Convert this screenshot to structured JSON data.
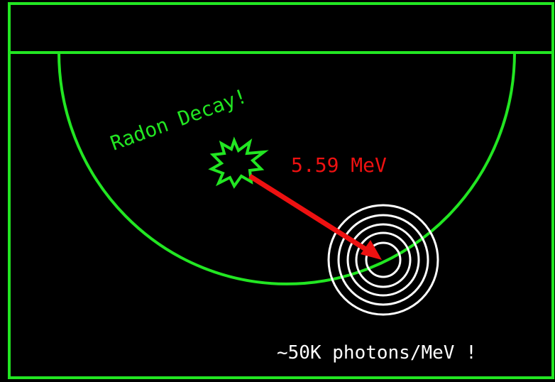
{
  "labels": {
    "decay": "Radon Decay!",
    "energy": "5.59 MeV",
    "yield": "~50K photons/MeV !"
  }
}
